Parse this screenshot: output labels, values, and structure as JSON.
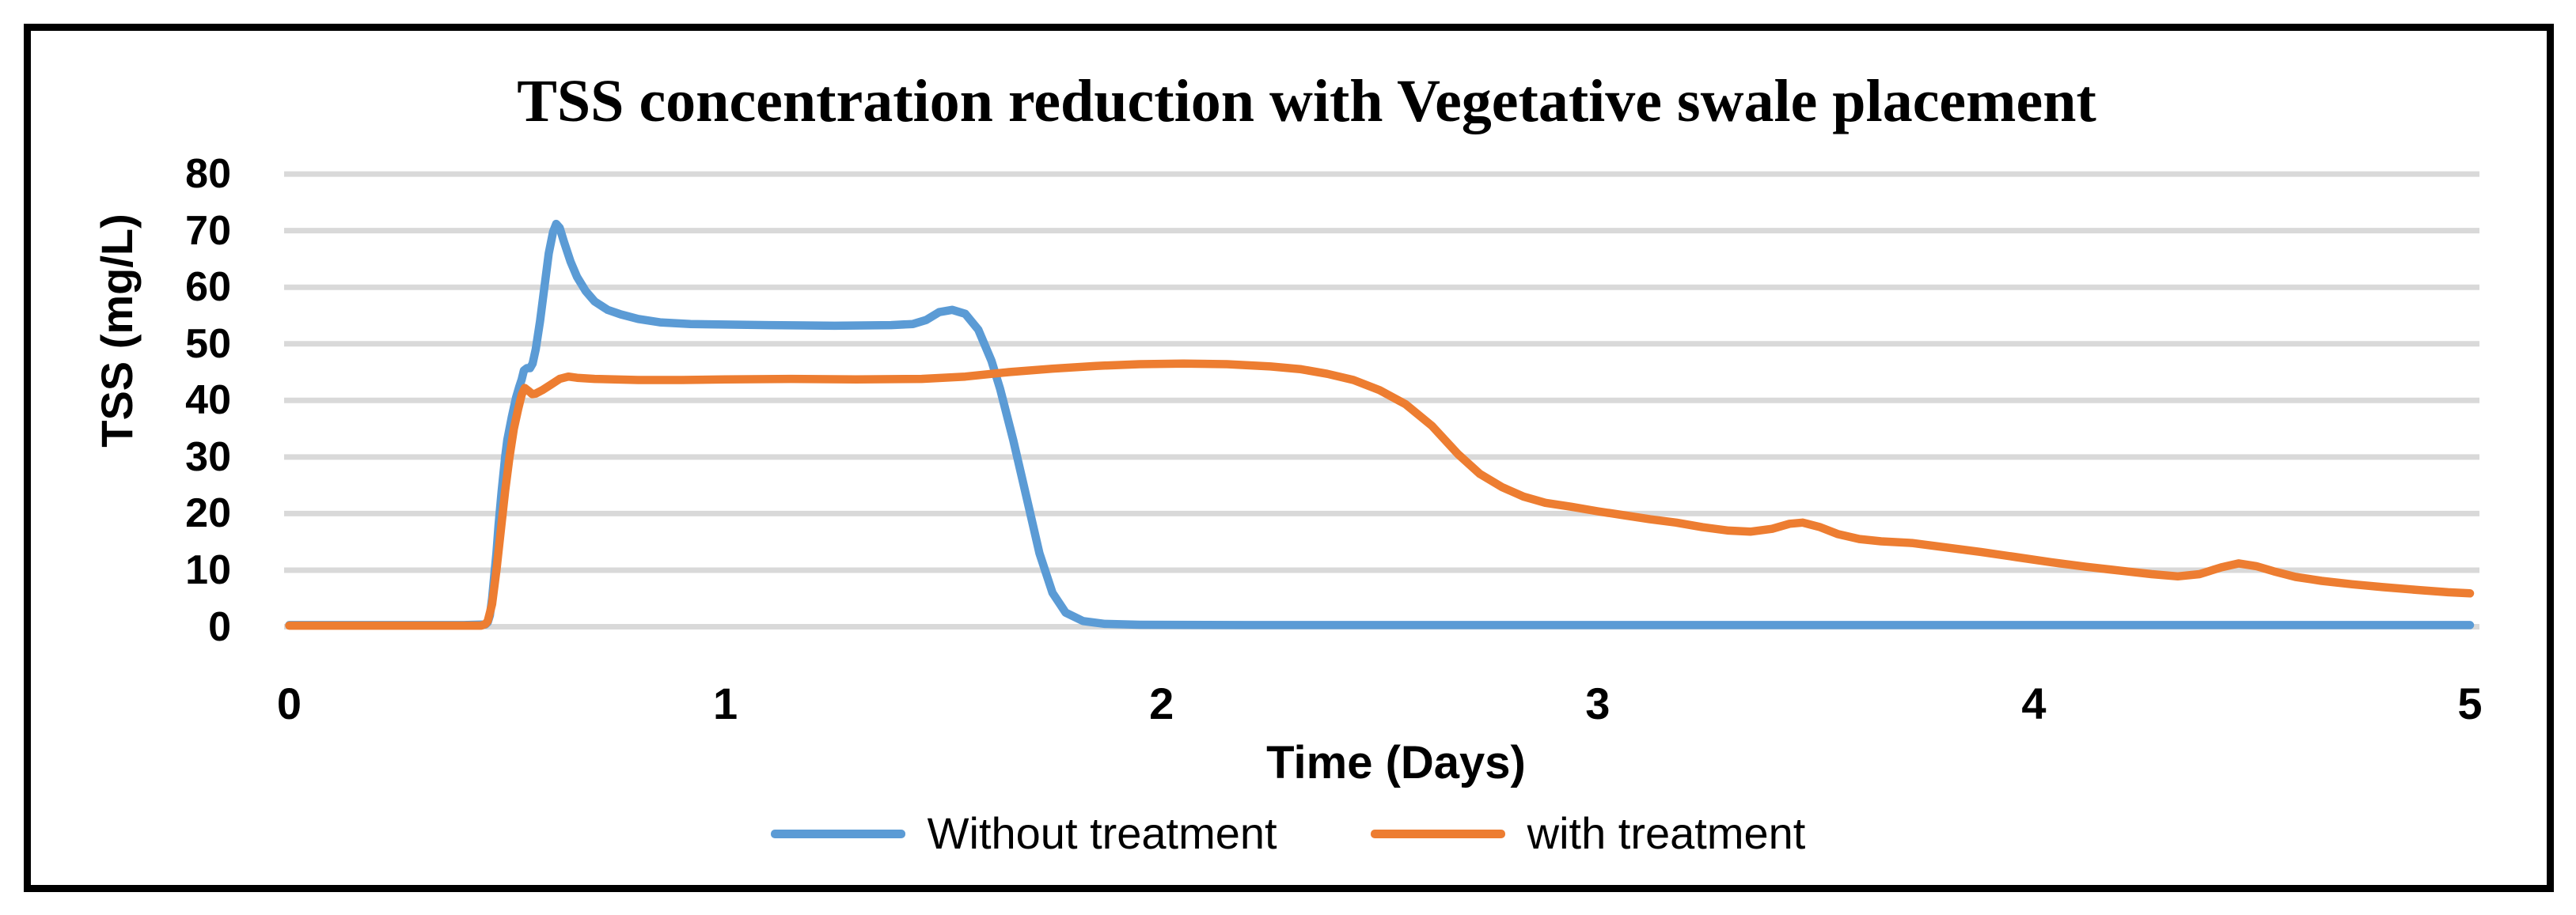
{
  "title": "TSS concentration reduction with Vegetative swale placement",
  "colors": {
    "series_blue": "#5B9BD5",
    "series_orange": "#ED7D31",
    "gridline": "#D9D9D9",
    "border": "#000000",
    "text": "#000000"
  },
  "legend": [
    {
      "label": "Without treatment",
      "color": "#5B9BD5"
    },
    {
      "label": "with treatment",
      "color": "#ED7D31"
    }
  ],
  "chart_data": {
    "type": "line",
    "title": "TSS concentration reduction with Vegetative swale placement",
    "xlabel": "Time (Days)",
    "ylabel": "TSS (mg/L)",
    "xlim": [
      0,
      5
    ],
    "ylim": [
      0,
      80
    ],
    "xticks": [
      0,
      1,
      2,
      3,
      4,
      5
    ],
    "yticks": [
      0,
      10,
      20,
      30,
      40,
      50,
      60,
      70,
      80
    ],
    "grid": "horizontal",
    "legend_position": "bottom",
    "series": [
      {
        "name": "Without treatment",
        "color": "#5B9BD5",
        "points": [
          [
            0,
            0.3
          ],
          [
            0.2,
            0.3
          ],
          [
            0.4,
            0.3
          ],
          [
            0.45,
            0.4
          ],
          [
            0.455,
            0.8
          ],
          [
            0.46,
            2
          ],
          [
            0.465,
            5
          ],
          [
            0.47,
            9
          ],
          [
            0.475,
            13
          ],
          [
            0.48,
            18
          ],
          [
            0.487,
            24
          ],
          [
            0.495,
            30
          ],
          [
            0.5,
            33
          ],
          [
            0.51,
            37
          ],
          [
            0.52,
            40.5
          ],
          [
            0.527,
            42.3
          ],
          [
            0.533,
            43.7
          ],
          [
            0.538,
            45.3
          ],
          [
            0.545,
            45.7
          ],
          [
            0.552,
            45.7
          ],
          [
            0.558,
            46.5
          ],
          [
            0.565,
            49
          ],
          [
            0.575,
            54
          ],
          [
            0.585,
            60
          ],
          [
            0.595,
            66
          ],
          [
            0.605,
            69.8
          ],
          [
            0.612,
            71.2
          ],
          [
            0.62,
            70.5
          ],
          [
            0.63,
            68
          ],
          [
            0.645,
            64.5
          ],
          [
            0.66,
            61.8
          ],
          [
            0.68,
            59.3
          ],
          [
            0.7,
            57.5
          ],
          [
            0.73,
            56
          ],
          [
            0.76,
            55.2
          ],
          [
            0.8,
            54.4
          ],
          [
            0.85,
            53.8
          ],
          [
            0.92,
            53.5
          ],
          [
            1.0,
            53.4
          ],
          [
            1.1,
            53.3
          ],
          [
            1.25,
            53.2
          ],
          [
            1.38,
            53.3
          ],
          [
            1.43,
            53.5
          ],
          [
            1.46,
            54.2
          ],
          [
            1.49,
            55.6
          ],
          [
            1.52,
            56.0
          ],
          [
            1.55,
            55.3
          ],
          [
            1.58,
            52.5
          ],
          [
            1.61,
            47
          ],
          [
            1.63,
            42
          ],
          [
            1.66,
            33
          ],
          [
            1.69,
            23
          ],
          [
            1.72,
            13
          ],
          [
            1.75,
            6
          ],
          [
            1.78,
            2.5
          ],
          [
            1.82,
            1.0
          ],
          [
            1.87,
            0.5
          ],
          [
            1.95,
            0.35
          ],
          [
            2.2,
            0.3
          ],
          [
            2.6,
            0.3
          ],
          [
            3.0,
            0.3
          ],
          [
            3.5,
            0.3
          ],
          [
            4.0,
            0.3
          ],
          [
            4.5,
            0.3
          ],
          [
            5.0,
            0.3
          ]
        ]
      },
      {
        "name": "with treatment",
        "color": "#ED7D31",
        "points": [
          [
            0,
            0.2
          ],
          [
            0.2,
            0.2
          ],
          [
            0.44,
            0.2
          ],
          [
            0.45,
            0.5
          ],
          [
            0.455,
            1
          ],
          [
            0.465,
            4
          ],
          [
            0.475,
            10
          ],
          [
            0.485,
            17
          ],
          [
            0.495,
            24
          ],
          [
            0.505,
            30
          ],
          [
            0.515,
            35
          ],
          [
            0.525,
            38.5
          ],
          [
            0.533,
            41
          ],
          [
            0.54,
            42.2
          ],
          [
            0.55,
            41.6
          ],
          [
            0.557,
            41.1
          ],
          [
            0.565,
            41.2
          ],
          [
            0.58,
            41.8
          ],
          [
            0.6,
            42.8
          ],
          [
            0.62,
            43.8
          ],
          [
            0.64,
            44.2
          ],
          [
            0.66,
            44.0
          ],
          [
            0.7,
            43.8
          ],
          [
            0.8,
            43.6
          ],
          [
            0.9,
            43.6
          ],
          [
            1.0,
            43.7
          ],
          [
            1.15,
            43.8
          ],
          [
            1.3,
            43.7
          ],
          [
            1.45,
            43.8
          ],
          [
            1.55,
            44.2
          ],
          [
            1.65,
            45.0
          ],
          [
            1.75,
            45.6
          ],
          [
            1.85,
            46.1
          ],
          [
            1.95,
            46.4
          ],
          [
            2.05,
            46.5
          ],
          [
            2.15,
            46.4
          ],
          [
            2.25,
            46.0
          ],
          [
            2.32,
            45.5
          ],
          [
            2.38,
            44.7
          ],
          [
            2.44,
            43.6
          ],
          [
            2.5,
            41.8
          ],
          [
            2.56,
            39.3
          ],
          [
            2.62,
            35.5
          ],
          [
            2.68,
            30.5
          ],
          [
            2.73,
            27.0
          ],
          [
            2.78,
            24.7
          ],
          [
            2.83,
            23.0
          ],
          [
            2.88,
            21.9
          ],
          [
            2.94,
            21.2
          ],
          [
            3.0,
            20.4
          ],
          [
            3.06,
            19.7
          ],
          [
            3.12,
            19.0
          ],
          [
            3.18,
            18.4
          ],
          [
            3.24,
            17.6
          ],
          [
            3.3,
            17.0
          ],
          [
            3.35,
            16.8
          ],
          [
            3.4,
            17.3
          ],
          [
            3.44,
            18.2
          ],
          [
            3.47,
            18.4
          ],
          [
            3.51,
            17.6
          ],
          [
            3.55,
            16.4
          ],
          [
            3.6,
            15.5
          ],
          [
            3.65,
            15.1
          ],
          [
            3.72,
            14.8
          ],
          [
            3.8,
            14.0
          ],
          [
            3.88,
            13.2
          ],
          [
            3.96,
            12.3
          ],
          [
            4.04,
            11.4
          ],
          [
            4.12,
            10.6
          ],
          [
            4.2,
            9.9
          ],
          [
            4.27,
            9.3
          ],
          [
            4.33,
            8.9
          ],
          [
            4.38,
            9.3
          ],
          [
            4.43,
            10.5
          ],
          [
            4.47,
            11.2
          ],
          [
            4.51,
            10.7
          ],
          [
            4.55,
            9.8
          ],
          [
            4.6,
            8.8
          ],
          [
            4.66,
            8.1
          ],
          [
            4.73,
            7.5
          ],
          [
            4.8,
            7.0
          ],
          [
            4.88,
            6.5
          ],
          [
            4.95,
            6.1
          ],
          [
            5.0,
            5.9
          ]
        ]
      }
    ]
  }
}
